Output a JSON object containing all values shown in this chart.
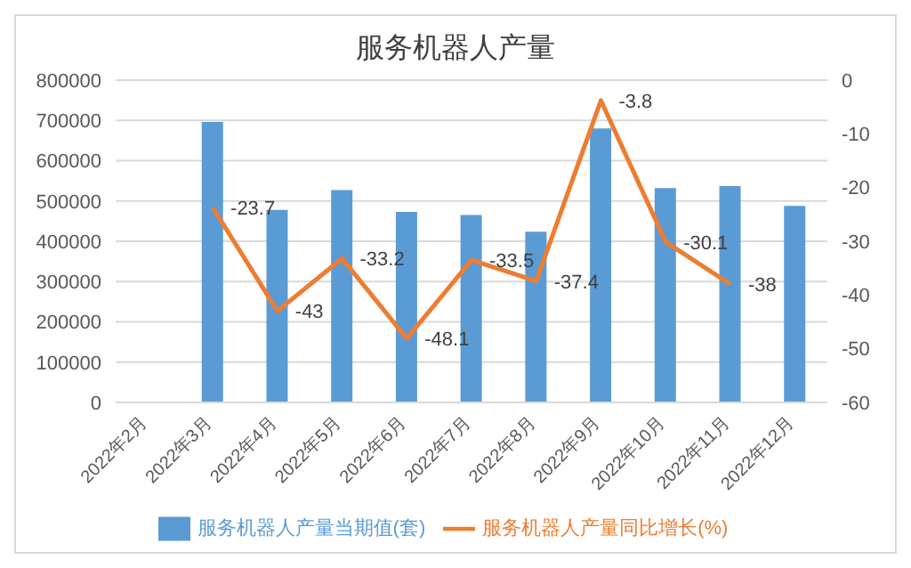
{
  "chart_data": {
    "type": "bar",
    "title": "服务机器人产量",
    "categories": [
      "2022年2月",
      "2022年3月",
      "2022年4月",
      "2022年5月",
      "2022年6月",
      "2022年7月",
      "2022年8月",
      "2022年9月",
      "2022年10月",
      "2022年11月",
      "2022年12月"
    ],
    "series": [
      {
        "name": "服务机器人产量当期值(套)",
        "color": "#5b9bd5",
        "values": [
          null,
          696000,
          478000,
          527000,
          473000,
          465000,
          424000,
          680000,
          532000,
          537000,
          488000
        ]
      },
      {
        "name": "服务机器人产量同比增长(%)",
        "type": "line",
        "axis": "y2",
        "color": "#ed7d31",
        "values": [
          null,
          -23.7,
          -43,
          -33.2,
          -48.1,
          -33.5,
          -37.4,
          -3.8,
          -30.1,
          -38,
          null
        ],
        "value_labels": [
          null,
          "-23.7",
          "-43",
          "-33.2",
          "-48.1",
          "-33.5",
          "-37.4",
          "-3.8",
          "-30.1",
          "-38",
          null
        ]
      }
    ],
    "ylim": [
      0,
      800000
    ],
    "yticks": [
      0,
      100000,
      200000,
      300000,
      400000,
      500000,
      600000,
      700000,
      800000
    ],
    "y2lim": [
      -60,
      0
    ],
    "y2ticks": [
      -60,
      -50,
      -40,
      -30,
      -20,
      -10,
      0
    ],
    "grid": "y",
    "legend": "bottom",
    "marker": "none"
  }
}
